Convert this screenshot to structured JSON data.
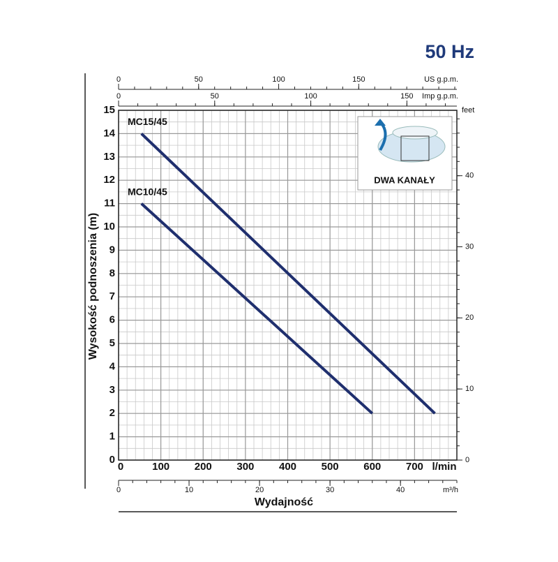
{
  "chart_data": {
    "type": "line",
    "title": "50 Hz",
    "x_label": "Wydajność",
    "x_unit": "l/min",
    "y_label": "Wysokość podnoszenia (m)",
    "xlim": [
      0,
      800
    ],
    "xticks": [
      0,
      100,
      200,
      300,
      400,
      500,
      600,
      700
    ],
    "ylim": [
      0,
      15
    ],
    "yticks": [
      0,
      1,
      2,
      3,
      4,
      5,
      6,
      7,
      8,
      9,
      10,
      11,
      12,
      13,
      14,
      15
    ],
    "y2_label": "feet",
    "y2lim": [
      0,
      49.2
    ],
    "y2ticks": [
      0,
      10,
      20,
      30,
      40
    ],
    "top_axes": [
      {
        "label": "US g.p.m.",
        "lim": [
          0,
          211.3
        ],
        "ticks": [
          0,
          50,
          100,
          150
        ]
      },
      {
        "label": "Imp g.p.m.",
        "lim": [
          0,
          176
        ],
        "ticks": [
          0,
          50,
          100,
          150
        ]
      }
    ],
    "bottom_axis": {
      "label": "m³/h",
      "lim": [
        0,
        48
      ],
      "ticks": [
        0,
        10,
        20,
        30,
        40
      ]
    },
    "grid": true,
    "inset_label": "DWA KANAŁY",
    "series": [
      {
        "name": "MC15/45",
        "color": "#1f2f6e",
        "x": [
          54,
          748
        ],
        "values": [
          14,
          2
        ]
      },
      {
        "name": "MC10/45",
        "color": "#1f2f6e",
        "x": [
          54,
          600
        ],
        "values": [
          11,
          2
        ]
      }
    ]
  }
}
